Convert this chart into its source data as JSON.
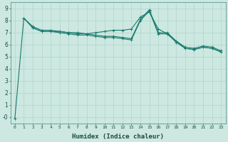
{
  "xlabel": "Humidex (Indice chaleur)",
  "ylabel": "",
  "xlim": [
    -0.5,
    23.5
  ],
  "ylim": [
    -0.5,
    9.5
  ],
  "xticks": [
    0,
    1,
    2,
    3,
    4,
    5,
    6,
    7,
    8,
    9,
    10,
    11,
    12,
    13,
    14,
    15,
    16,
    17,
    18,
    19,
    20,
    21,
    22,
    23
  ],
  "yticks": [
    0,
    1,
    2,
    3,
    4,
    5,
    6,
    7,
    8,
    9
  ],
  "ytick_labels": [
    "-0",
    "1",
    "2",
    "3",
    "4",
    "5",
    "6",
    "7",
    "8",
    "9"
  ],
  "bg_color": "#cce8e0",
  "line_color": "#1a7a6e",
  "grid_color": "#aacfc8",
  "series": [
    [
      null,
      8.2,
      7.4,
      7.1,
      7.1,
      7.0,
      6.9,
      6.8,
      6.8,
      6.7,
      6.6,
      6.6,
      6.5,
      6.4,
      8.0,
      8.8,
      6.9,
      6.9,
      6.2,
      5.7,
      5.6,
      5.8,
      5.7,
      5.4
    ],
    [
      null,
      8.2,
      7.4,
      7.1,
      7.1,
      7.1,
      7.0,
      6.9,
      6.9,
      7.0,
      7.1,
      7.2,
      7.2,
      7.3,
      8.3,
      8.7,
      7.3,
      6.9,
      6.3,
      5.8,
      5.7,
      5.9,
      5.8,
      5.5
    ],
    [
      -0.1,
      8.2,
      7.5,
      7.2,
      7.2,
      7.1,
      7.0,
      7.0,
      6.9,
      6.8,
      6.7,
      6.7,
      6.6,
      6.5,
      8.1,
      8.9,
      7.0,
      7.0,
      6.3,
      5.7,
      5.6,
      5.8,
      5.7,
      5.4
    ]
  ],
  "figsize": [
    3.2,
    2.0
  ],
  "dpi": 100,
  "xtick_fontsize": 4.5,
  "ytick_fontsize": 5.5,
  "xlabel_fontsize": 6.5,
  "linewidth": 0.8,
  "markersize": 2.5
}
